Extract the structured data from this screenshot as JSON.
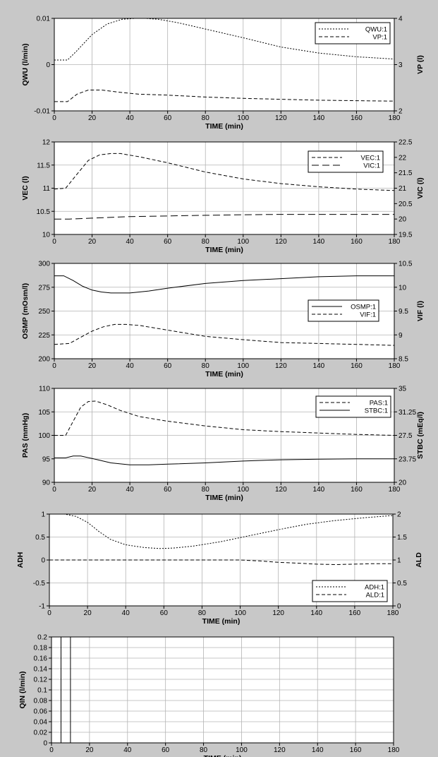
{
  "colors": {
    "background": "#c8c8c8",
    "plot_area": "#ffffff",
    "grid": "#b4b4b4",
    "line": "#000000"
  },
  "chart_data": [
    {
      "type": "line",
      "title": "",
      "xlabel": "TIME (min)",
      "xlim": [
        0,
        180
      ],
      "xticks": [
        0,
        20,
        40,
        60,
        80,
        100,
        120,
        140,
        160,
        180
      ],
      "ylabel": "QWU (l/min)",
      "ylim": [
        -0.01,
        0.01
      ],
      "yticks": [
        "-0.01",
        "0",
        "0.01"
      ],
      "y2label": "VP (l)",
      "y2lim": [
        2,
        4
      ],
      "y2ticks": [
        "2",
        "3",
        "4"
      ],
      "grid": true,
      "legend_position": "top-right",
      "series": [
        {
          "name": "QWU:1",
          "axis": "left",
          "style": "dotted",
          "x": [
            0,
            7,
            12,
            20,
            28,
            36,
            43,
            48,
            55,
            65,
            80,
            100,
            120,
            140,
            160,
            180
          ],
          "y": [
            0.001,
            0.001,
            0.003,
            0.0065,
            0.0088,
            0.0098,
            0.01,
            0.01,
            0.0098,
            0.0091,
            0.0077,
            0.0058,
            0.0038,
            0.0025,
            0.0017,
            0.0012
          ]
        },
        {
          "name": "VP:1",
          "axis": "right",
          "style": "dashed",
          "x": [
            0,
            7,
            12,
            18,
            25,
            35,
            45,
            60,
            80,
            100,
            120,
            140,
            160,
            180
          ],
          "y": [
            2.2,
            2.2,
            2.36,
            2.45,
            2.45,
            2.4,
            2.36,
            2.34,
            2.3,
            2.27,
            2.25,
            2.23,
            2.22,
            2.21
          ]
        }
      ]
    },
    {
      "type": "line",
      "title": "",
      "xlabel": "TIME (min)",
      "xlim": [
        0,
        180
      ],
      "xticks": [
        0,
        20,
        40,
        60,
        80,
        100,
        120,
        140,
        160,
        180
      ],
      "ylabel": "VEC (l)",
      "ylim": [
        10,
        12
      ],
      "yticks": [
        "10",
        "10.5",
        "11",
        "11.5",
        "12"
      ],
      "y2label": "VIC (l)",
      "y2lim": [
        19.5,
        22.5
      ],
      "y2ticks": [
        "19.5",
        "20",
        "20.5",
        "21",
        "21.5",
        "22",
        "22.5"
      ],
      "grid": true,
      "legend_position": "top-right",
      "series": [
        {
          "name": "VEC:1",
          "axis": "left",
          "style": "dashed",
          "x": [
            0,
            6,
            12,
            18,
            24,
            30,
            35,
            45,
            60,
            80,
            100,
            120,
            140,
            160,
            180
          ],
          "y": [
            10.98,
            11.0,
            11.3,
            11.6,
            11.72,
            11.75,
            11.75,
            11.68,
            11.55,
            11.35,
            11.2,
            11.1,
            11.03,
            10.98,
            10.95
          ]
        },
        {
          "name": "VIC:1",
          "axis": "right",
          "style": "long-dashed",
          "x": [
            0,
            8,
            20,
            40,
            60,
            80,
            100,
            120,
            140,
            160,
            180
          ],
          "y": [
            20.0,
            20.0,
            20.03,
            20.08,
            20.1,
            20.12,
            20.14,
            20.15,
            20.15,
            20.15,
            20.15
          ]
        }
      ]
    },
    {
      "type": "line",
      "title": "",
      "xlabel": "TIME (min)",
      "xlim": [
        0,
        180
      ],
      "xticks": [
        0,
        20,
        40,
        60,
        80,
        100,
        120,
        140,
        160,
        180
      ],
      "ylabel": "OSMP (mOsm/l)",
      "ylim": [
        200,
        300
      ],
      "yticks": [
        "200",
        "225",
        "250",
        "275",
        "300"
      ],
      "y2label": "VIF (l)",
      "y2lim": [
        8.5,
        10.5
      ],
      "y2ticks": [
        "8.5",
        "9",
        "9.5",
        "10",
        "10.5"
      ],
      "grid": true,
      "legend_position": "right",
      "series": [
        {
          "name": "OSMP:1",
          "axis": "left",
          "style": "solid",
          "x": [
            0,
            5,
            10,
            15,
            20,
            25,
            30,
            40,
            50,
            60,
            80,
            100,
            120,
            140,
            160,
            180
          ],
          "y": [
            287,
            287,
            282,
            276,
            272,
            270,
            269,
            269,
            271,
            274,
            279,
            282,
            284,
            286,
            287,
            287
          ]
        },
        {
          "name": "VIF:1",
          "axis": "right",
          "style": "dashed",
          "x": [
            0,
            8,
            14,
            20,
            26,
            32,
            38,
            45,
            60,
            80,
            100,
            120,
            140,
            160,
            180
          ],
          "y": [
            8.8,
            8.82,
            8.95,
            9.08,
            9.17,
            9.22,
            9.22,
            9.2,
            9.1,
            8.97,
            8.9,
            8.84,
            8.82,
            8.8,
            8.78
          ]
        }
      ]
    },
    {
      "type": "line",
      "title": "",
      "xlabel": "TIME (min)",
      "xlim": [
        0,
        180
      ],
      "xticks": [
        0,
        20,
        40,
        60,
        80,
        100,
        120,
        140,
        160,
        180
      ],
      "ylabel": "PAS (mmHg)",
      "ylim": [
        90,
        110
      ],
      "yticks": [
        "90",
        "95",
        "100",
        "105",
        "110"
      ],
      "y2label": "STBC (mEq/l)",
      "y2lim": [
        20,
        35
      ],
      "y2ticks": [
        "20",
        "23.75",
        "27.5",
        "31.25",
        "35"
      ],
      "grid": true,
      "legend_position": "top-right",
      "series": [
        {
          "name": "PAS:1",
          "axis": "left",
          "style": "dashed",
          "x": [
            0,
            6,
            10,
            14,
            18,
            22,
            28,
            35,
            45,
            60,
            80,
            100,
            120,
            140,
            160,
            180
          ],
          "y": [
            100,
            100,
            103,
            106,
            107.2,
            107.3,
            106.5,
            105.3,
            104.0,
            103.0,
            102.0,
            101.2,
            100.8,
            100.5,
            100.2,
            100.0
          ]
        },
        {
          "name": "STBC:1",
          "axis": "right",
          "style": "solid",
          "x": [
            0,
            6,
            10,
            14,
            20,
            30,
            40,
            50,
            60,
            80,
            100,
            120,
            140,
            160,
            180
          ],
          "y": [
            23.9,
            23.9,
            24.2,
            24.2,
            23.8,
            23.1,
            22.8,
            22.8,
            22.9,
            23.1,
            23.4,
            23.6,
            23.7,
            23.75,
            23.75
          ]
        }
      ]
    },
    {
      "type": "line",
      "title": "",
      "xlabel": "TIME (min)",
      "xlim": [
        0,
        180
      ],
      "xticks": [
        0,
        20,
        40,
        60,
        80,
        100,
        120,
        140,
        160,
        180
      ],
      "ylabel": "ADH",
      "ylim": [
        -1,
        1
      ],
      "yticks": [
        "-1",
        "-0.5",
        "0",
        "0.5",
        "1"
      ],
      "y2label": "ALD",
      "y2lim": [
        0,
        2
      ],
      "y2ticks": [
        "0",
        "0.5",
        "1",
        "1.5",
        "2"
      ],
      "grid": true,
      "legend_position": "bottom-right",
      "series": [
        {
          "name": "ADH:1",
          "axis": "left",
          "style": "dotted",
          "x": [
            0,
            8,
            14,
            20,
            26,
            32,
            40,
            50,
            58,
            65,
            75,
            90,
            105,
            120,
            135,
            150,
            165,
            180
          ],
          "y": [
            1.0,
            1.0,
            0.95,
            0.82,
            0.62,
            0.45,
            0.33,
            0.27,
            0.25,
            0.26,
            0.3,
            0.4,
            0.53,
            0.66,
            0.78,
            0.86,
            0.92,
            0.97
          ]
        },
        {
          "name": "ALD:1",
          "axis": "right",
          "style": "dashed",
          "x": [
            0,
            100,
            110,
            120,
            130,
            140,
            150,
            160,
            170,
            180
          ],
          "y": [
            1.0,
            1.0,
            0.98,
            0.95,
            0.93,
            0.91,
            0.9,
            0.91,
            0.92,
            0.92
          ]
        }
      ]
    },
    {
      "type": "line",
      "title": "",
      "xlabel": "TIME (min)",
      "xlim": [
        0,
        180
      ],
      "xticks": [
        0,
        20,
        40,
        60,
        80,
        100,
        120,
        140,
        160,
        180
      ],
      "ylabel": "QIN (l/min)",
      "ylim": [
        0,
        0.2
      ],
      "yticks": [
        "0",
        "0.02",
        "0.04",
        "0.06",
        "0.08",
        "0.1",
        "0.12",
        "0.14",
        "0.16",
        "0.18",
        "0.2"
      ],
      "grid": true,
      "legend_position": "",
      "series": [
        {
          "axis": "left",
          "style": "solid",
          "x": [
            0,
            5,
            5,
            10,
            10,
            180
          ],
          "y": [
            0,
            0,
            0.2,
            0.2,
            0,
            0
          ]
        }
      ]
    }
  ]
}
